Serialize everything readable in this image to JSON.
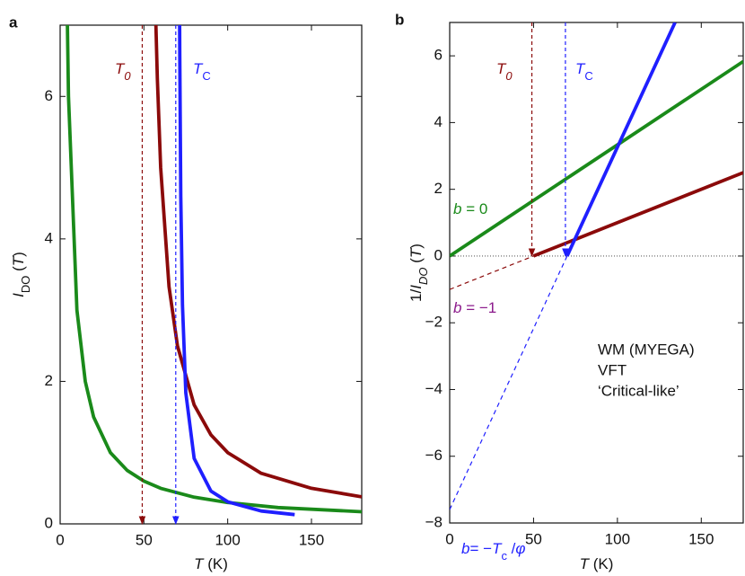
{
  "chart_data": [
    {
      "type": "line",
      "panel_label": "a",
      "xlabel": [
        {
          "text": "T",
          "style": "i"
        },
        {
          "text": " (K)",
          "style": "n"
        }
      ],
      "ylabel": [
        {
          "text": "I",
          "style": "i"
        },
        {
          "text": "DO",
          "style": "sub"
        },
        {
          "text": " (",
          "style": "n"
        },
        {
          "text": "T",
          "style": "i"
        },
        {
          "text": ")",
          "style": "n"
        }
      ],
      "xlim": [
        0,
        180
      ],
      "ylim": [
        0,
        7
      ],
      "xticks": [
        0,
        50,
        100,
        150
      ],
      "yticks": [
        0,
        2,
        4,
        6
      ],
      "series": [
        {
          "color": "#1a8a1a",
          "dash": false,
          "x": [
            4,
            5,
            10,
            15,
            20,
            30,
            40,
            50,
            60,
            80,
            100,
            130,
            180
          ],
          "values": [
            7.5,
            6,
            3,
            2,
            1.5,
            1,
            0.75,
            0.6,
            0.5,
            0.375,
            0.3,
            0.23,
            0.17
          ]
        },
        {
          "color": "#8b0a0a",
          "dash": false,
          "x": [
            57,
            58,
            60,
            65,
            70,
            80,
            90,
            100,
            120,
            150,
            180
          ],
          "values": [
            7.14,
            6.25,
            5.0,
            3.33,
            2.5,
            1.67,
            1.25,
            1.0,
            0.71,
            0.5,
            0.38
          ]
        },
        {
          "color": "#1f1fff",
          "dash": false,
          "x": [
            71.3,
            71.4,
            72,
            73,
            75,
            80,
            90,
            100,
            120,
            140
          ],
          "values": [
            7.08,
            6.57,
            4.6,
            3.07,
            1.84,
            0.92,
            0.46,
            0.31,
            0.18,
            0.13
          ]
        }
      ],
      "arrows": [
        {
          "x": 49,
          "from": 7,
          "to": 0,
          "color": "#8b0a0a"
        },
        {
          "x": 69,
          "from": 7,
          "to": 0,
          "color": "#1f1fff"
        }
      ],
      "annotations": [
        {
          "color": "#8b0a0a",
          "parts": [
            {
              "text": "T",
              "style": "i"
            },
            {
              "text": "0",
              "style": "isub"
            }
          ]
        },
        {
          "color": "#1f1fff",
          "parts": [
            {
              "text": "T",
              "style": "i"
            },
            {
              "text": "C",
              "style": "sub"
            }
          ]
        }
      ]
    },
    {
      "type": "line",
      "panel_label": "b",
      "xlabel": [
        {
          "text": "T",
          "style": "i"
        },
        {
          "text": " (K)",
          "style": "n"
        }
      ],
      "ylabel": [
        {
          "text": "1/",
          "style": "n"
        },
        {
          "text": "I",
          "style": "i"
        },
        {
          "text": "DO",
          "style": "isub"
        },
        {
          "text": " (",
          "style": "n"
        },
        {
          "text": "T",
          "style": "i"
        },
        {
          "text": ")",
          "style": "n"
        }
      ],
      "xlim": [
        0,
        175
      ],
      "ylim": [
        -8,
        7
      ],
      "xticks": [
        0,
        50,
        100,
        150
      ],
      "yticks": [
        {
          "value": -8,
          "label": "−8"
        },
        {
          "value": -6,
          "label": "−6"
        },
        {
          "value": -4,
          "label": "−4"
        },
        {
          "value": -2,
          "label": "−2"
        },
        0,
        2,
        4,
        6
      ],
      "hline": 0,
      "series": [
        {
          "name": "WM (MYEGA)",
          "color": "#1a8a1a",
          "dash": false,
          "x": [
            0,
            175
          ],
          "values": [
            0,
            5.83
          ]
        },
        {
          "name": "VFT",
          "color": "#8b0a0a",
          "dash": false,
          "x": [
            50,
            175
          ],
          "values": [
            0,
            2.5
          ]
        },
        {
          "name": "‘Critical-like’",
          "color": "#1f1fff",
          "dash": false,
          "x": [
            70,
            134.4
          ],
          "values": [
            0,
            7.0
          ]
        },
        {
          "color": "#8b0a0a",
          "dash": true,
          "x": [
            0,
            50
          ],
          "values": [
            -1,
            0
          ]
        },
        {
          "color": "#1f1fff",
          "dash": true,
          "x": [
            0,
            70
          ],
          "values": [
            -7.6,
            0
          ]
        }
      ],
      "arrows": [
        {
          "x": 49,
          "from": 7,
          "to": 0,
          "color": "#8b0a0a"
        },
        {
          "x": 69,
          "from": 7,
          "to": 0,
          "color": "#1f1fff"
        }
      ],
      "annotations": [
        {
          "color": "#8b0a0a",
          "parts": [
            {
              "text": "T",
              "style": "i"
            },
            {
              "text": "0",
              "style": "isub"
            }
          ]
        },
        {
          "color": "#1f1fff",
          "parts": [
            {
              "text": "T",
              "style": "i"
            },
            {
              "text": "C",
              "style": "sub"
            }
          ]
        },
        {
          "color": "#1a8a1a",
          "parts": [
            {
              "text": "b",
              "style": "i"
            },
            {
              "text": " = 0",
              "style": "n"
            }
          ]
        },
        {
          "color": "#8b1a8b",
          "parts": [
            {
              "text": "b",
              "style": "i"
            },
            {
              "text": " = −1",
              "style": "n"
            }
          ]
        },
        {
          "color": "#1f1fff",
          "parts": [
            {
              "text": "b",
              "style": "i"
            },
            {
              "text": "= −",
              "style": "n"
            },
            {
              "text": "T",
              "style": "i"
            },
            {
              "text": "c",
              "style": "sub"
            },
            {
              "text": " /",
              "style": "n"
            },
            {
              "text": "φ",
              "style": "i"
            }
          ]
        }
      ]
    }
  ]
}
